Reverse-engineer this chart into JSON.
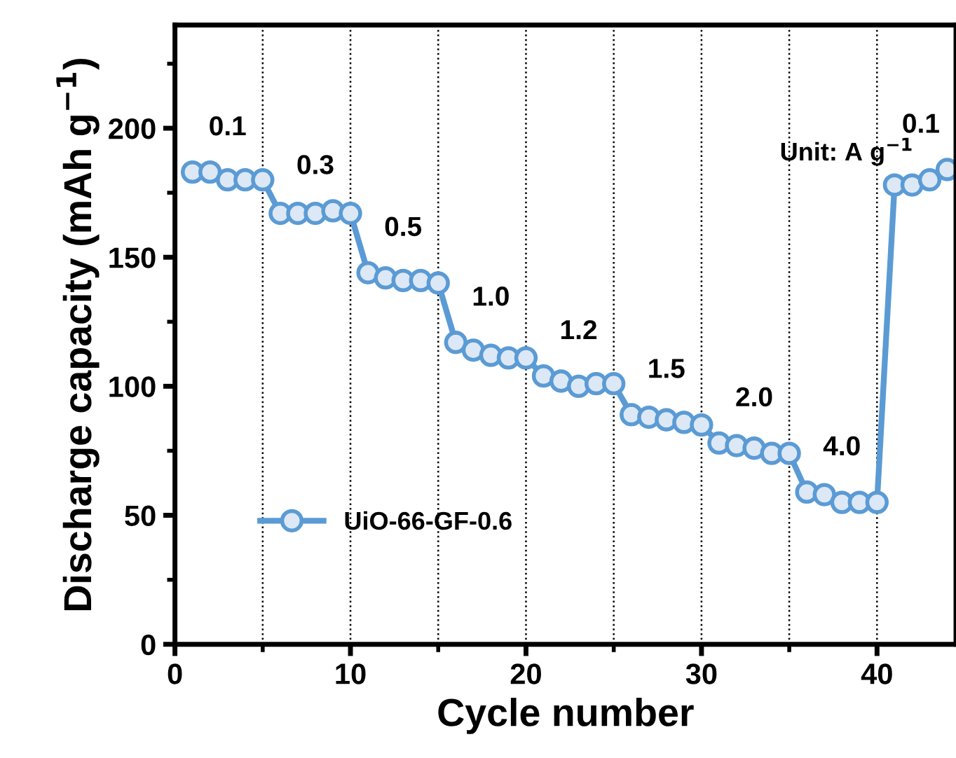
{
  "chart_data": {
    "type": "line",
    "xlabel": "Cycle number",
    "ylabel": "Discharge capacity (mAh g$^{−1}$)",
    "x": [
      1,
      2,
      3,
      4,
      5,
      6,
      7,
      8,
      9,
      10,
      11,
      12,
      13,
      14,
      15,
      16,
      17,
      18,
      19,
      20,
      21,
      22,
      23,
      24,
      25,
      26,
      27,
      28,
      29,
      30,
      31,
      32,
      33,
      34,
      35,
      36,
      37,
      38,
      39,
      40,
      41,
      42,
      43,
      44
    ],
    "series": [
      {
        "name": "UiO-66-GF-0.6",
        "color": "#5b9bd5",
        "values": [
          183,
          183,
          180,
          180,
          180,
          167,
          167,
          167,
          168,
          167,
          144,
          142,
          141,
          141,
          140,
          117,
          114,
          112,
          111,
          111,
          104,
          102,
          100,
          101,
          101,
          89,
          88,
          87,
          86,
          85,
          78,
          77,
          76,
          74,
          74,
          59,
          58,
          55,
          55,
          55,
          178,
          178,
          180,
          184
        ]
      }
    ],
    "xlim": [
      0,
      44.5
    ],
    "ylim": [
      0,
      240
    ],
    "xticks": [
      0,
      10,
      20,
      30,
      40
    ],
    "yticks": [
      0,
      50,
      100,
      150,
      200
    ],
    "marker": "circle",
    "line_style": "solid",
    "grid": false,
    "legend": "left",
    "ref_lines": [
      {
        "axis": "x",
        "value": 5,
        "line_style": "dotted"
      },
      {
        "axis": "x",
        "value": 10,
        "line_style": "dotted"
      },
      {
        "axis": "x",
        "value": 15,
        "line_style": "dotted"
      },
      {
        "axis": "x",
        "value": 20,
        "line_style": "dotted"
      },
      {
        "axis": "x",
        "value": 25,
        "line_style": "dotted"
      },
      {
        "axis": "x",
        "value": 30,
        "line_style": "dotted"
      },
      {
        "axis": "x",
        "value": 35,
        "line_style": "dotted"
      },
      {
        "axis": "x",
        "value": 40,
        "line_style": "dotted"
      }
    ],
    "annotations": [
      "0.1",
      "0.3",
      "0.5",
      "1.0",
      "1.2",
      "1.5",
      "2.0",
      "4.0",
      "0.1",
      "Unit: A g$^{−1}$"
    ]
  }
}
